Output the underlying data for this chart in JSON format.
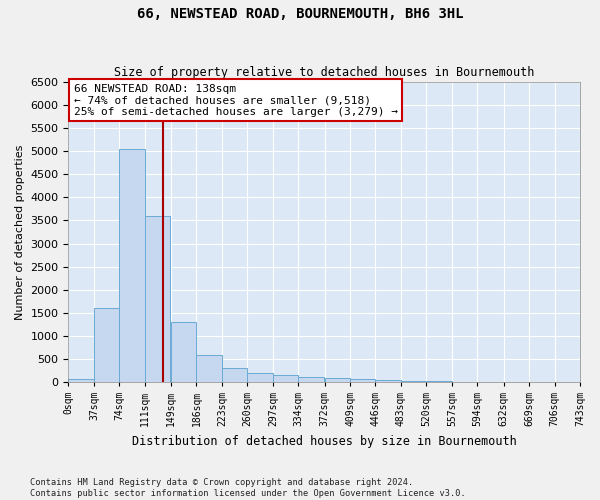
{
  "title": "66, NEWSTEAD ROAD, BOURNEMOUTH, BH6 3HL",
  "subtitle": "Size of property relative to detached houses in Bournemouth",
  "xlabel": "Distribution of detached houses by size in Bournemouth",
  "ylabel": "Number of detached properties",
  "bar_color": "#c5d8f0",
  "bar_edge_color": "#6aaad4",
  "background_color": "#dce8f5",
  "grid_color": "#ffffff",
  "bin_starts": [
    0,
    37,
    74,
    111,
    149,
    186,
    223,
    260,
    297,
    334,
    372,
    409,
    446,
    483,
    520,
    557,
    594,
    632,
    669,
    706
  ],
  "bin_width": 37,
  "bin_labels": [
    "0sqm",
    "37sqm",
    "74sqm",
    "111sqm",
    "149sqm",
    "186sqm",
    "223sqm",
    "260sqm",
    "297sqm",
    "334sqm",
    "372sqm",
    "409sqm",
    "446sqm",
    "483sqm",
    "520sqm",
    "557sqm",
    "594sqm",
    "632sqm",
    "669sqm",
    "706sqm",
    "743sqm"
  ],
  "bar_heights": [
    55,
    1600,
    5050,
    3600,
    1300,
    580,
    310,
    200,
    155,
    110,
    90,
    60,
    50,
    10,
    10,
    0,
    0,
    0,
    0,
    0
  ],
  "property_size": 138,
  "annotation_title": "66 NEWSTEAD ROAD: 138sqm",
  "annotation_line1": "← 74% of detached houses are smaller (9,518)",
  "annotation_line2": "25% of semi-detached houses are larger (3,279) →",
  "vline_color": "#aa0000",
  "annotation_box_edge": "#cc0000",
  "ylim": [
    0,
    6500
  ],
  "xlim": [
    0,
    743
  ],
  "yticks": [
    0,
    500,
    1000,
    1500,
    2000,
    2500,
    3000,
    3500,
    4000,
    4500,
    5000,
    5500,
    6000,
    6500
  ],
  "footer_line1": "Contains HM Land Registry data © Crown copyright and database right 2024.",
  "footer_line2": "Contains public sector information licensed under the Open Government Licence v3.0."
}
